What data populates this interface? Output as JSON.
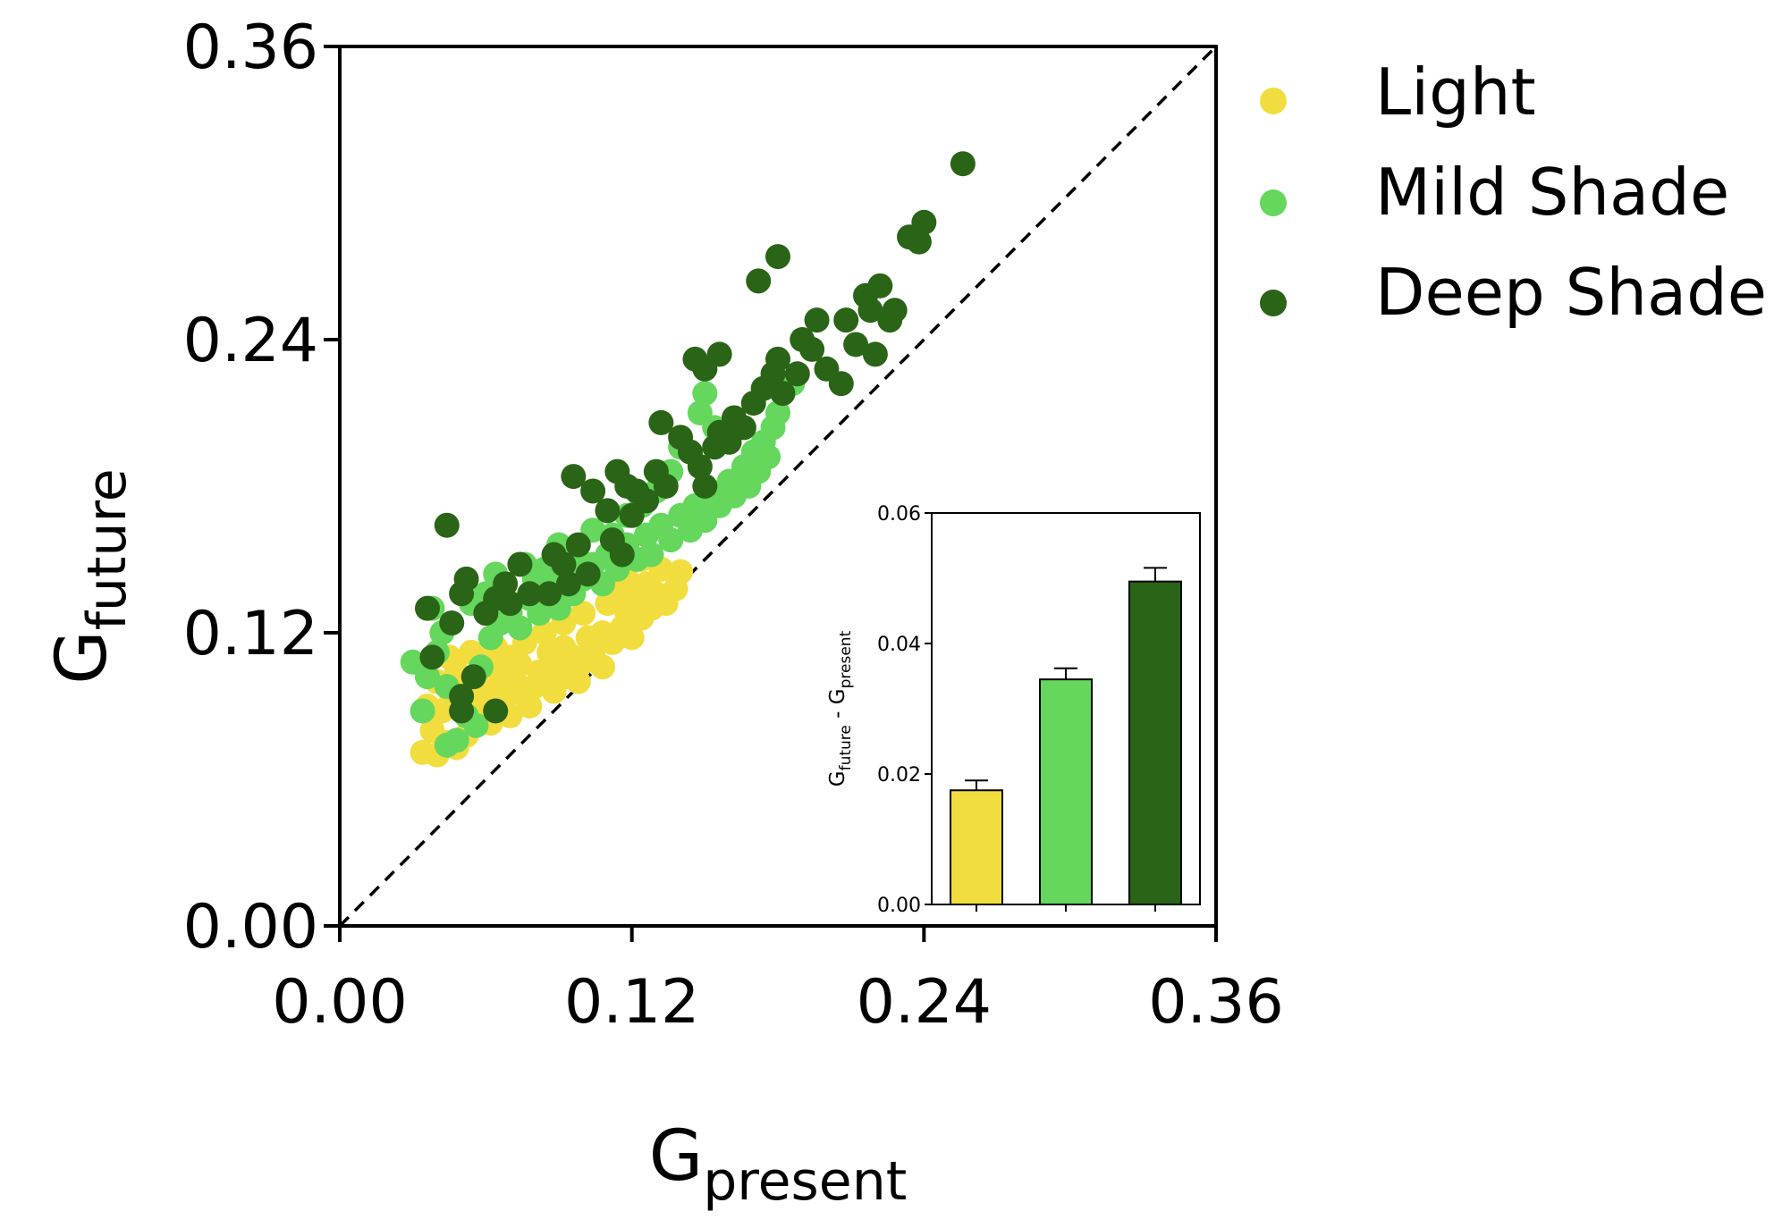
{
  "chart_data": [
    {
      "type": "scatter",
      "xlabel": {
        "main": "G",
        "sub": "present"
      },
      "ylabel": {
        "main": "G",
        "sub": "future"
      },
      "xlim": [
        0,
        0.36
      ],
      "ylim": [
        0,
        0.36
      ],
      "xticks": [
        "0.00",
        "0.12",
        "0.24",
        "0.36"
      ],
      "yticks": [
        "0.00",
        "0.12",
        "0.24",
        "0.36"
      ],
      "xtick_values": [
        0,
        0.12,
        0.24,
        0.36
      ],
      "ytick_values": [
        0,
        0.12,
        0.24,
        0.36
      ],
      "reference_line": {
        "style": "dashed",
        "from": [
          0,
          0
        ],
        "to": [
          0.36,
          0.36
        ]
      },
      "grid": false,
      "legend_position": "top-right, outside plot",
      "series": [
        {
          "name": "Light",
          "color": "#f2dd3f",
          "points": [
            [
              0.034,
              0.071
            ],
            [
              0.04,
              0.07
            ],
            [
              0.038,
              0.08
            ],
            [
              0.044,
              0.075
            ],
            [
              0.048,
              0.073
            ],
            [
              0.052,
              0.078
            ],
            [
              0.036,
              0.09
            ],
            [
              0.042,
              0.088
            ],
            [
              0.046,
              0.093
            ],
            [
              0.055,
              0.085
            ],
            [
              0.058,
              0.09
            ],
            [
              0.062,
              0.083
            ],
            [
              0.05,
              0.098
            ],
            [
              0.056,
              0.1
            ],
            [
              0.06,
              0.096
            ],
            [
              0.065,
              0.09
            ],
            [
              0.068,
              0.094
            ],
            [
              0.07,
              0.086
            ],
            [
              0.066,
              0.103
            ],
            [
              0.072,
              0.1
            ],
            [
              0.075,
              0.095
            ],
            [
              0.078,
              0.09
            ],
            [
              0.08,
              0.098
            ],
            [
              0.074,
              0.107
            ],
            [
              0.082,
              0.104
            ],
            [
              0.085,
              0.1
            ],
            [
              0.088,
              0.096
            ],
            [
              0.09,
              0.106
            ],
            [
              0.094,
              0.102
            ],
            [
              0.098,
              0.1
            ],
            [
              0.086,
              0.112
            ],
            [
              0.092,
              0.114
            ],
            [
              0.096,
              0.11
            ],
            [
              0.1,
              0.108
            ],
            [
              0.104,
              0.112
            ],
            [
              0.108,
              0.106
            ],
            [
              0.102,
              0.118
            ],
            [
              0.108,
              0.12
            ],
            [
              0.112,
              0.116
            ],
            [
              0.116,
              0.122
            ],
            [
              0.12,
              0.118
            ],
            [
              0.118,
              0.128
            ],
            [
              0.124,
              0.126
            ],
            [
              0.128,
              0.13
            ],
            [
              0.122,
              0.134
            ],
            [
              0.13,
              0.136
            ],
            [
              0.134,
              0.132
            ],
            [
              0.126,
              0.14
            ],
            [
              0.138,
              0.138
            ],
            [
              0.132,
              0.146
            ],
            [
              0.14,
              0.145
            ],
            [
              0.124,
              0.15
            ],
            [
              0.118,
              0.142
            ],
            [
              0.114,
              0.136
            ],
            [
              0.06,
              0.108
            ],
            [
              0.045,
              0.11
            ],
            [
              0.054,
              0.112
            ],
            [
              0.064,
              0.114
            ],
            [
              0.076,
              0.116
            ],
            [
              0.084,
              0.12
            ],
            [
              0.04,
              0.1
            ],
            [
              0.048,
              0.104
            ],
            [
              0.07,
              0.11
            ],
            [
              0.092,
              0.124
            ],
            [
              0.1,
              0.128
            ],
            [
              0.11,
              0.132
            ]
          ]
        },
        {
          "name": "Mild Shade",
          "color": "#64d75c",
          "points": [
            [
              0.03,
              0.108
            ],
            [
              0.036,
              0.102
            ],
            [
              0.034,
              0.088
            ],
            [
              0.04,
              0.112
            ],
            [
              0.044,
              0.098
            ],
            [
              0.042,
              0.12
            ],
            [
              0.038,
              0.13
            ],
            [
              0.048,
              0.076
            ],
            [
              0.044,
              0.074
            ],
            [
              0.052,
              0.086
            ],
            [
              0.056,
              0.082
            ],
            [
              0.058,
              0.106
            ],
            [
              0.062,
              0.118
            ],
            [
              0.066,
              0.124
            ],
            [
              0.054,
              0.132
            ],
            [
              0.06,
              0.136
            ],
            [
              0.07,
              0.128
            ],
            [
              0.074,
              0.122
            ],
            [
              0.078,
              0.134
            ],
            [
              0.082,
              0.128
            ],
            [
              0.08,
              0.142
            ],
            [
              0.086,
              0.138
            ],
            [
              0.09,
              0.13
            ],
            [
              0.092,
              0.144
            ],
            [
              0.096,
              0.136
            ],
            [
              0.1,
              0.142
            ],
            [
              0.104,
              0.148
            ],
            [
              0.108,
              0.14
            ],
            [
              0.11,
              0.152
            ],
            [
              0.114,
              0.146
            ],
            [
              0.118,
              0.156
            ],
            [
              0.122,
              0.15
            ],
            [
              0.126,
              0.16
            ],
            [
              0.128,
              0.152
            ],
            [
              0.132,
              0.164
            ],
            [
              0.136,
              0.158
            ],
            [
              0.14,
              0.168
            ],
            [
              0.144,
              0.162
            ],
            [
              0.146,
              0.172
            ],
            [
              0.15,
              0.166
            ],
            [
              0.152,
              0.178
            ],
            [
              0.156,
              0.172
            ],
            [
              0.16,
              0.182
            ],
            [
              0.162,
              0.176
            ],
            [
              0.166,
              0.188
            ],
            [
              0.168,
              0.18
            ],
            [
              0.17,
              0.194
            ],
            [
              0.172,
              0.186
            ],
            [
              0.174,
              0.198
            ],
            [
              0.176,
              0.192
            ],
            [
              0.178,
              0.204
            ],
            [
              0.18,
              0.21
            ],
            [
              0.182,
              0.218
            ],
            [
              0.186,
              0.222
            ],
            [
              0.148,
              0.21
            ],
            [
              0.15,
              0.218
            ],
            [
              0.154,
              0.204
            ],
            [
              0.14,
              0.196
            ],
            [
              0.136,
              0.186
            ],
            [
              0.13,
              0.178
            ],
            [
              0.124,
              0.172
            ],
            [
              0.118,
              0.168
            ],
            [
              0.112,
              0.16
            ],
            [
              0.104,
              0.162
            ],
            [
              0.098,
              0.15
            ],
            [
              0.09,
              0.156
            ],
            [
              0.084,
              0.146
            ],
            [
              0.076,
              0.148
            ],
            [
              0.068,
              0.14
            ],
            [
              0.064,
              0.144
            ]
          ]
        },
        {
          "name": "Deep Shade",
          "color": "#2a6416",
          "points": [
            [
              0.044,
              0.164
            ],
            [
              0.036,
              0.13
            ],
            [
              0.038,
              0.11
            ],
            [
              0.046,
              0.124
            ],
            [
              0.05,
              0.136
            ],
            [
              0.052,
              0.142
            ],
            [
              0.05,
              0.094
            ],
            [
              0.05,
              0.088
            ],
            [
              0.055,
              0.102
            ],
            [
              0.064,
              0.088
            ],
            [
              0.06,
              0.128
            ],
            [
              0.064,
              0.134
            ],
            [
              0.068,
              0.14
            ],
            [
              0.07,
              0.132
            ],
            [
              0.074,
              0.148
            ],
            [
              0.078,
              0.136
            ],
            [
              0.086,
              0.136
            ],
            [
              0.088,
              0.152
            ],
            [
              0.092,
              0.148
            ],
            [
              0.094,
              0.14
            ],
            [
              0.098,
              0.156
            ],
            [
              0.102,
              0.144
            ],
            [
              0.096,
              0.184
            ],
            [
              0.104,
              0.178
            ],
            [
              0.11,
              0.17
            ],
            [
              0.112,
              0.158
            ],
            [
              0.114,
              0.186
            ],
            [
              0.118,
              0.18
            ],
            [
              0.12,
              0.168
            ],
            [
              0.116,
              0.152
            ],
            [
              0.122,
              0.178
            ],
            [
              0.126,
              0.174
            ],
            [
              0.13,
              0.186
            ],
            [
              0.134,
              0.18
            ],
            [
              0.132,
              0.206
            ],
            [
              0.14,
              0.2
            ],
            [
              0.144,
              0.194
            ],
            [
              0.148,
              0.188
            ],
            [
              0.15,
              0.18
            ],
            [
              0.154,
              0.196
            ],
            [
              0.156,
              0.202
            ],
            [
              0.16,
              0.198
            ],
            [
              0.162,
              0.208
            ],
            [
              0.166,
              0.204
            ],
            [
              0.17,
              0.214
            ],
            [
              0.174,
              0.22
            ],
            [
              0.178,
              0.226
            ],
            [
              0.18,
              0.232
            ],
            [
              0.182,
              0.218
            ],
            [
              0.188,
              0.226
            ],
            [
              0.19,
              0.24
            ],
            [
              0.194,
              0.236
            ],
            [
              0.196,
              0.248
            ],
            [
              0.2,
              0.228
            ],
            [
              0.206,
              0.222
            ],
            [
              0.208,
              0.248
            ],
            [
              0.212,
              0.238
            ],
            [
              0.216,
              0.258
            ],
            [
              0.218,
              0.252
            ],
            [
              0.22,
              0.234
            ],
            [
              0.222,
              0.262
            ],
            [
              0.226,
              0.248
            ],
            [
              0.228,
              0.252
            ],
            [
              0.234,
              0.282
            ],
            [
              0.238,
              0.28
            ],
            [
              0.24,
              0.288
            ],
            [
              0.256,
              0.312
            ],
            [
              0.18,
              0.274
            ],
            [
              0.172,
              0.264
            ],
            [
              0.156,
              0.234
            ],
            [
              0.15,
              0.228
            ],
            [
              0.146,
              0.232
            ]
          ]
        }
      ]
    },
    {
      "type": "bar",
      "ylabel": {
        "main1": "G",
        "sub1": "future",
        "sep": " - ",
        "main2": "G",
        "sub2": "present"
      },
      "ylim": [
        0,
        0.06
      ],
      "yticks": [
        "0.00",
        "0.02",
        "0.04",
        "0.06"
      ],
      "ytick_values": [
        0,
        0.02,
        0.04,
        0.06
      ],
      "bars": [
        {
          "category": "Light",
          "value": 0.0175,
          "error": 0.0015,
          "color": "#f2dd3f"
        },
        {
          "category": "Mild Shade",
          "value": 0.0345,
          "error": 0.0017,
          "color": "#64d75c"
        },
        {
          "category": "Deep Shade",
          "value": 0.0495,
          "error": 0.0021,
          "color": "#2a6416"
        }
      ]
    }
  ],
  "legend": [
    {
      "label": "Light",
      "color": "#f2dd3f"
    },
    {
      "label": "Mild Shade",
      "color": "#64d75c"
    },
    {
      "label": "Deep Shade",
      "color": "#2a6416"
    }
  ]
}
